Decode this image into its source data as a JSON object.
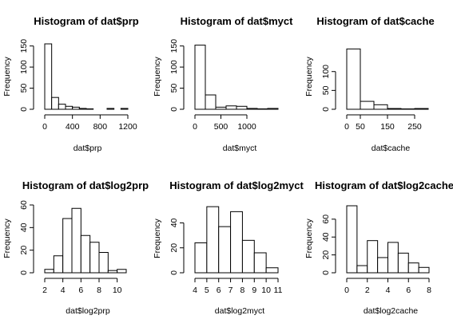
{
  "chart_data": [
    {
      "type": "bar",
      "title": "Histogram of dat$prp",
      "xlabel": "dat$prp",
      "ylabel": "Frequency",
      "breaks": [
        0,
        100,
        200,
        300,
        400,
        500,
        600,
        700,
        800,
        900,
        1000,
        1100,
        1200
      ],
      "values": [
        155,
        28,
        12,
        7,
        5,
        2,
        1,
        0,
        0,
        2,
        0,
        2
      ],
      "xticks": [
        0,
        400,
        800,
        1200
      ],
      "yticks": [
        0,
        50,
        100,
        150
      ],
      "ylim": [
        0,
        155
      ]
    },
    {
      "type": "bar",
      "title": "Histogram of dat$myct",
      "xlabel": "dat$myct",
      "ylabel": "Frequency",
      "breaks": [
        0,
        200,
        400,
        600,
        800,
        1000,
        1200,
        1400,
        1600
      ],
      "values": [
        152,
        34,
        5,
        8,
        7,
        2,
        1,
        2
      ],
      "xticks": [
        0,
        500,
        1000
      ],
      "yticks": [
        0,
        50,
        100,
        150
      ],
      "ylim": [
        0,
        155
      ]
    },
    {
      "type": "bar",
      "title": "Histogram of dat$cache",
      "xlabel": "dat$cache",
      "ylabel": "Frequency",
      "breaks": [
        0,
        50,
        100,
        150,
        200,
        250,
        300
      ],
      "values": [
        160,
        21,
        12,
        2,
        1,
        2
      ],
      "xticks": [
        0,
        50,
        150,
        250
      ],
      "yticks": [
        0,
        50,
        100
      ],
      "ylim": [
        0,
        165
      ]
    },
    {
      "type": "bar",
      "title": "Histogram of dat$log2prp",
      "xlabel": "dat$log2prp",
      "ylabel": "Frequency",
      "breaks": [
        2,
        3,
        4,
        5,
        6,
        7,
        8,
        9,
        10,
        11
      ],
      "values": [
        3,
        15,
        48,
        57,
        33,
        27,
        18,
        2,
        3
      ],
      "xticks": [
        2,
        4,
        6,
        8,
        10
      ],
      "yticks": [
        0,
        20,
        40,
        60
      ],
      "ylim": [
        0,
        60
      ]
    },
    {
      "type": "bar",
      "title": "Histogram of dat$log2myct",
      "xlabel": "dat$log2myct",
      "ylabel": "Frequency",
      "breaks": [
        4,
        5,
        6,
        7,
        8,
        9,
        10,
        11
      ],
      "values": [
        24,
        53,
        37,
        49,
        26,
        16,
        4
      ],
      "xticks": [
        4,
        5,
        6,
        7,
        8,
        9,
        10,
        11
      ],
      "yticks": [
        0,
        20,
        40
      ],
      "ylim": [
        0,
        55
      ]
    },
    {
      "type": "bar",
      "title": "Histogram of dat$log2cache",
      "xlabel": "dat$log2cache",
      "ylabel": "Frequency",
      "breaks": [
        0,
        1,
        2,
        3,
        4,
        5,
        6,
        7,
        8
      ],
      "values": [
        75,
        8,
        36,
        17,
        34,
        22,
        11,
        6
      ],
      "xticks": [
        0,
        2,
        4,
        6,
        8
      ],
      "yticks": [
        0,
        20,
        40,
        60
      ],
      "ylim": [
        0,
        75
      ]
    }
  ]
}
